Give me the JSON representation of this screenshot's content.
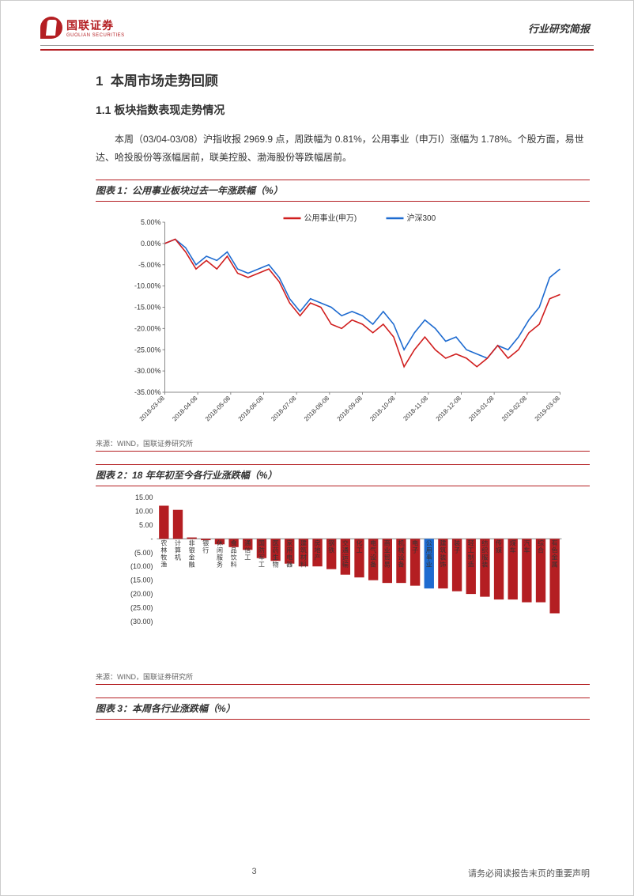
{
  "header": {
    "logo_cn": "国联证券",
    "logo_en": "GUOLIAN SECURITIES",
    "doc_type": "行业研究简报"
  },
  "section1": {
    "num": "1",
    "title": "本周市场走势回顾",
    "sub_num": "1.1",
    "sub_title": "板块指数表现走势情况",
    "para": "本周（03/04-03/08）沪指收报 2969.9 点，周跌幅为 0.81%，公用事业（申万Ⅰ）涨幅为 1.78%。个股方面，易世达、哈投股份等涨幅居前，联美控股、渤海股份等跌幅居前。"
  },
  "chart1": {
    "title": "图表 1：公用事业板块过去一年涨跌幅（%）",
    "type": "line",
    "legend": [
      {
        "label": "公用事业(申万)",
        "color": "#d01e1e"
      },
      {
        "label": "沪深300",
        "color": "#1e6bd0"
      }
    ],
    "ylim": [
      -35,
      5
    ],
    "yticks": [
      "5.00%",
      "0.00%",
      "-5.00%",
      "-10.00%",
      "-15.00%",
      "-20.00%",
      "-25.00%",
      "-30.00%",
      "-35.00%"
    ],
    "xticks": [
      "2018-03-08",
      "2018-04-08",
      "2018-05-08",
      "2018-06-08",
      "2018-07-08",
      "2018-08-08",
      "2018-09-08",
      "2018-10-08",
      "2018-11-08",
      "2018-12-08",
      "2019-01-08",
      "2019-02-08",
      "2019-03-08"
    ],
    "series_red": [
      0,
      1,
      -2,
      -6,
      -4,
      -6,
      -3,
      -7,
      -8,
      -7,
      -6,
      -9,
      -14,
      -17,
      -14,
      -15,
      -19,
      -20,
      -18,
      -19,
      -21,
      -19,
      -22,
      -29,
      -25,
      -22,
      -25,
      -27,
      -26,
      -27,
      -29,
      -27,
      -24,
      -27,
      -25,
      -21,
      -19,
      -13,
      -12
    ],
    "series_blue": [
      0,
      1,
      -1,
      -5,
      -3,
      -4,
      -2,
      -6,
      -7,
      -6,
      -5,
      -8,
      -13,
      -16,
      -13,
      -14,
      -15,
      -17,
      -16,
      -17,
      -19,
      -16,
      -19,
      -25,
      -21,
      -18,
      -20,
      -23,
      -22,
      -25,
      -26,
      -27,
      -24,
      -25,
      -22,
      -18,
      -15,
      -8,
      -6
    ],
    "background_color": "#ffffff",
    "axis_color": "#888888",
    "source": "来源：WIND，国联证券研究所"
  },
  "chart2": {
    "title": "图表 2：18 年年初至今各行业涨跌幅（%）",
    "type": "bar",
    "ylim": [
      -30,
      15
    ],
    "yticks": [
      "15.00",
      "10.00",
      "5.00",
      "-",
      "(5.00)",
      "(10.00)",
      "(15.00)",
      "(20.00)",
      "(25.00)",
      "(30.00)"
    ],
    "categories": [
      "农林牧渔",
      "计算机",
      "非银金融",
      "银行",
      "休闲服务",
      "食品饮料",
      "通信工",
      "国防军工",
      "医药生物",
      "家用电器",
      "建筑材料",
      "房地产",
      "钢铁",
      "交通运输",
      "化工",
      "电气设备",
      "商业贸易",
      "机械设备",
      "电子",
      "公用事业",
      "建筑装饰",
      "装子",
      "轻工制造",
      "纺织服装",
      "传媒",
      "煤车",
      "汽车",
      "综合",
      "有色金属"
    ],
    "values": [
      12,
      10.5,
      0.5,
      -0.5,
      -2,
      -3,
      -4,
      -7,
      -8,
      -9,
      -10,
      -10,
      -11,
      -13,
      -14,
      -15,
      -16,
      -16,
      -17,
      -18,
      -18,
      -19,
      -20,
      -21,
      -22,
      -22,
      -23,
      -23,
      -27
    ],
    "bar_color_default": "#b41e22",
    "highlight_index": 19,
    "highlight_color": "#1e6bd0",
    "source": "来源：WIND，国联证券研究所"
  },
  "chart3": {
    "title": "图表 3：本周各行业涨跌幅（%）"
  },
  "footer": {
    "page": "3",
    "disclaimer": "请务必阅读报告末页的重要声明"
  }
}
